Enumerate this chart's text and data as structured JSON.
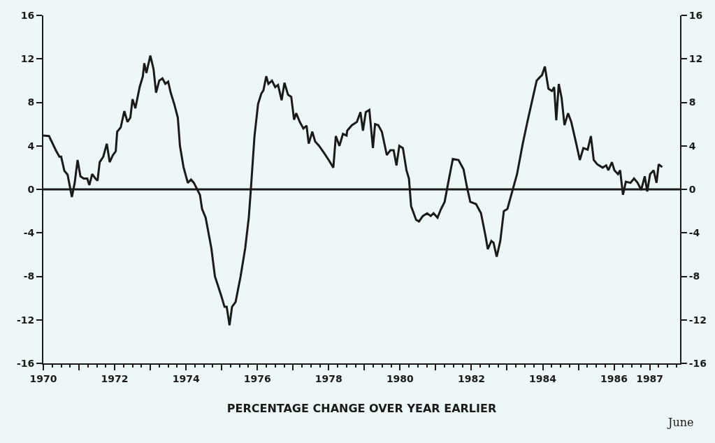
{
  "chart_data": {
    "type": "line",
    "xlabel": "PERCENTAGE CHANGE OVER YEAR EARLIER",
    "annotations": [
      "June"
    ],
    "x": [
      1970.0,
      1970.16,
      1970.35,
      1970.45,
      1970.5,
      1970.59,
      1970.68,
      1970.8,
      1970.88,
      1970.96,
      1971.04,
      1971.13,
      1971.23,
      1971.29,
      1971.37,
      1971.46,
      1971.52,
      1971.58,
      1971.68,
      1971.78,
      1971.86,
      1971.95,
      1972.03,
      1972.07,
      1972.17,
      1972.27,
      1972.36,
      1972.44,
      1972.5,
      1972.58,
      1972.7,
      1972.79,
      1972.83,
      1972.89,
      1972.93,
      1973.0,
      1973.09,
      1973.16,
      1973.25,
      1973.34,
      1973.42,
      1973.5,
      1973.57,
      1973.67,
      1973.77,
      1973.83,
      1973.93,
      1974.05,
      1974.14,
      1974.22,
      1974.32,
      1974.39,
      1974.45,
      1974.55,
      1974.71,
      1974.81,
      1974.98,
      1975.08,
      1975.14,
      1975.22,
      1975.29,
      1975.39,
      1975.53,
      1975.66,
      1975.76,
      1975.82,
      1975.92,
      1976.02,
      1976.11,
      1976.17,
      1976.25,
      1976.31,
      1976.41,
      1976.5,
      1976.58,
      1976.68,
      1976.76,
      1976.86,
      1976.95,
      1977.03,
      1977.09,
      1977.19,
      1977.29,
      1977.38,
      1977.44,
      1977.54,
      1977.62,
      1977.73,
      1977.87,
      1978.0,
      1978.13,
      1978.2,
      1978.3,
      1978.4,
      1978.5,
      1978.52,
      1978.65,
      1978.79,
      1978.89,
      1978.96,
      1979.04,
      1979.14,
      1979.24,
      1979.3,
      1979.39,
      1979.49,
      1979.63,
      1979.73,
      1979.82,
      1979.9,
      1979.98,
      1980.08,
      1980.18,
      1980.25,
      1980.31,
      1980.45,
      1980.53,
      1980.64,
      1980.76,
      1980.86,
      1980.94,
      1981.05,
      1981.15,
      1981.25,
      1981.35,
      1981.48,
      1981.64,
      1981.78,
      1981.88,
      1981.97,
      1982.13,
      1982.27,
      1982.4,
      1982.46,
      1982.56,
      1982.62,
      1982.71,
      1982.81,
      1982.91,
      1983.01,
      1983.14,
      1983.28,
      1983.44,
      1983.57,
      1983.7,
      1983.83,
      1983.93,
      1983.98,
      1984.06,
      1984.16,
      1984.26,
      1984.32,
      1984.38,
      1984.45,
      1984.53,
      1984.61,
      1984.71,
      1984.8,
      1984.94,
      1985.04,
      1985.14,
      1985.26,
      1985.35,
      1985.43,
      1985.53,
      1985.68,
      1985.78,
      1985.84,
      1985.94,
      1986.01,
      1986.11,
      1986.17,
      1986.25,
      1986.33,
      1986.46,
      1986.56,
      1986.66,
      1986.76,
      1986.86,
      1986.93,
      1987.01,
      1987.11,
      1987.19,
      1987.25,
      1987.35
    ],
    "series": [
      {
        "color": "#1a1a1a",
        "values": [
          4.95,
          4.9,
          3.6,
          3.0,
          3.0,
          1.7,
          1.35,
          -0.7,
          0.6,
          2.7,
          1.2,
          1.0,
          1.0,
          0.4,
          1.4,
          1.0,
          0.8,
          2.5,
          3.0,
          4.2,
          2.5,
          3.15,
          3.5,
          5.3,
          5.7,
          7.2,
          6.2,
          6.6,
          8.3,
          7.45,
          9.4,
          10.4,
          11.6,
          10.7,
          11.3,
          12.3,
          11.05,
          8.9,
          10.0,
          10.2,
          9.7,
          9.9,
          8.9,
          7.85,
          6.6,
          4.0,
          2.05,
          0.6,
          0.9,
          0.6,
          -0.05,
          -0.5,
          -1.8,
          -2.6,
          -5.4,
          -8.0,
          -9.7,
          -10.8,
          -10.8,
          -12.5,
          -10.8,
          -10.35,
          -8.0,
          -5.4,
          -2.6,
          0.1,
          4.9,
          7.85,
          8.8,
          9.1,
          10.4,
          9.7,
          10.0,
          9.4,
          9.6,
          8.2,
          9.8,
          8.7,
          8.5,
          6.4,
          7.0,
          6.2,
          5.6,
          5.85,
          4.2,
          5.3,
          4.4,
          4.0,
          3.35,
          2.7,
          2.0,
          4.9,
          4.0,
          5.1,
          4.95,
          5.4,
          5.9,
          6.2,
          7.1,
          5.4,
          7.1,
          7.3,
          3.8,
          6.0,
          5.9,
          5.3,
          3.15,
          3.6,
          3.6,
          2.2,
          4.0,
          3.8,
          1.75,
          1.0,
          -1.55,
          -2.8,
          -2.95,
          -2.45,
          -2.2,
          -2.45,
          -2.2,
          -2.6,
          -1.8,
          -1.15,
          0.6,
          2.8,
          2.7,
          1.85,
          0.15,
          -1.15,
          -1.35,
          -2.2,
          -4.35,
          -5.5,
          -4.75,
          -4.9,
          -6.2,
          -4.75,
          -2.0,
          -1.8,
          -0.25,
          1.4,
          4.2,
          6.2,
          8.1,
          10.0,
          10.35,
          10.5,
          11.3,
          9.25,
          9.05,
          9.4,
          6.35,
          9.7,
          8.4,
          5.9,
          7.0,
          6.2,
          4.2,
          2.7,
          3.8,
          3.65,
          4.9,
          2.7,
          2.3,
          2.0,
          2.2,
          1.75,
          2.5,
          1.75,
          1.4,
          1.75,
          -0.5,
          0.7,
          0.6,
          1.0,
          0.6,
          -0.05,
          1.2,
          -0.2,
          1.4,
          1.75,
          0.6,
          2.3,
          2.05
        ]
      }
    ],
    "xlim": [
      1970,
      1987.85
    ],
    "xticks": [
      1970,
      {
        "value": 1971,
        "label": null
      },
      1972,
      {
        "value": 1973,
        "label": null
      },
      1974,
      {
        "value": 1975,
        "label": null
      },
      1976,
      {
        "value": 1977,
        "label": null
      },
      1978,
      {
        "value": 1979,
        "label": null
      },
      1980,
      {
        "value": 1981,
        "label": null
      },
      1982,
      {
        "value": 1983,
        "label": null
      },
      1984,
      {
        "value": 1985,
        "label": null
      },
      1986,
      1987
    ],
    "ylim": [
      -16,
      16
    ],
    "yticks": [
      -16,
      -12,
      -8,
      -4,
      0,
      4,
      8,
      12,
      16
    ],
    "y2lim": [
      -16,
      16
    ],
    "y2ticks": [
      -16,
      -12,
      -8,
      -4,
      0,
      4,
      8,
      12,
      16
    ],
    "ref_lines": [
      {
        "axis": "y",
        "value": 0,
        "color": "#1a1a1a"
      }
    ],
    "grid": false,
    "marker": "none",
    "line_style": "solid"
  }
}
